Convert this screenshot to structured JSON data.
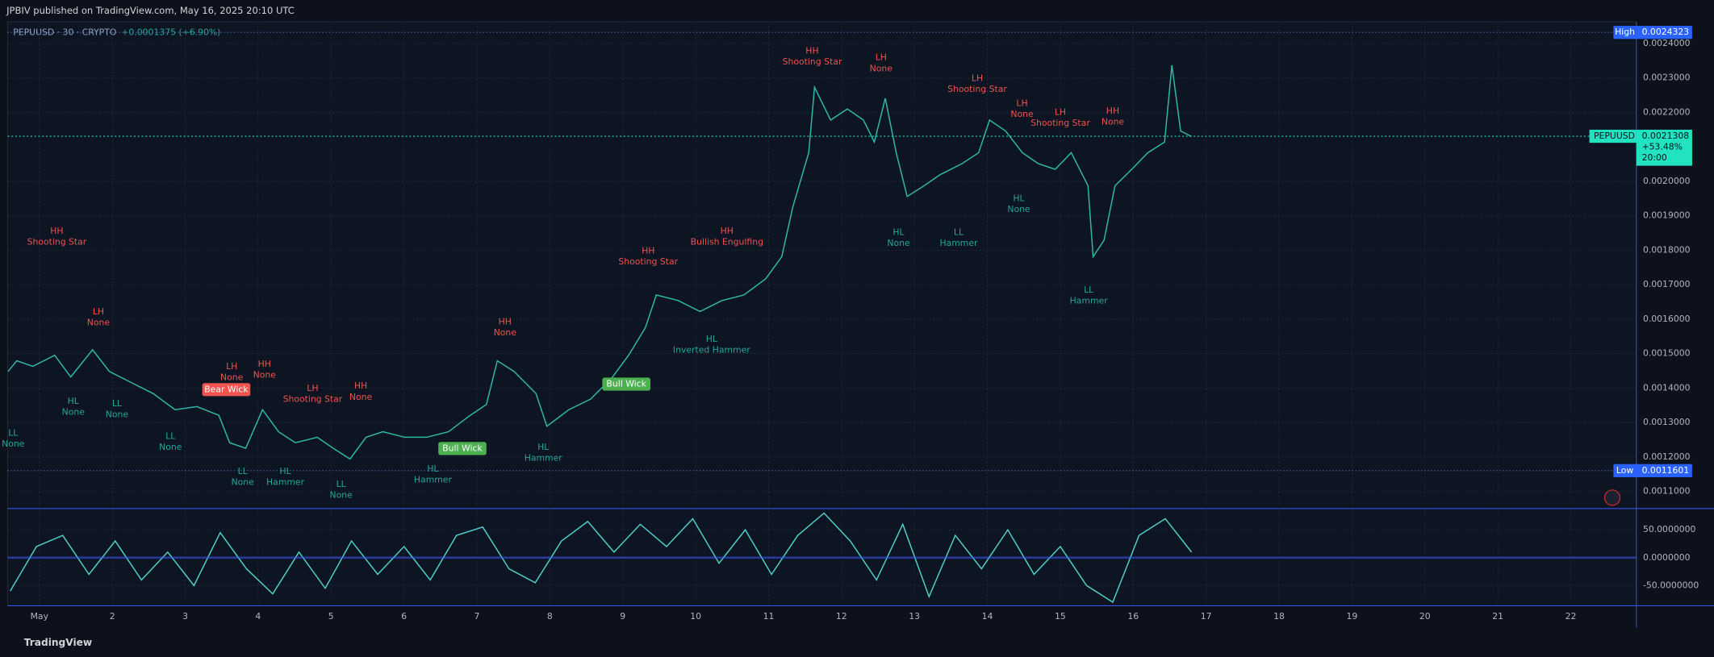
{
  "header": "JPBIV published on TradingView.com, May 16, 2025 20:10 UTC",
  "footer": "TradingView",
  "chart_data": [
    {
      "type": "line",
      "symbol_line": "PEPUUSD · 30 · CRYPTO",
      "change": "+0.0001375 (+6.90%)",
      "x": [
        0.57,
        0.69,
        0.91,
        1.21,
        1.43,
        1.73,
        1.96,
        2.26,
        2.56,
        2.86,
        3.16,
        3.46,
        3.61,
        3.83,
        4.06,
        4.28,
        4.51,
        4.81,
        5.03,
        5.26,
        5.48,
        5.71,
        6.01,
        6.31,
        6.61,
        6.91,
        7.13,
        7.28,
        7.51,
        7.81,
        7.96,
        8.26,
        8.56,
        8.86,
        9.08,
        9.31,
        9.46,
        9.76,
        10.06,
        10.36,
        10.66,
        10.96,
        11.18,
        11.33,
        11.55,
        11.63,
        11.85,
        12.08,
        12.3,
        12.45,
        12.6,
        12.75,
        12.9,
        13.13,
        13.35,
        13.65,
        13.88,
        14.03,
        14.25,
        14.48,
        14.7,
        14.93,
        15.15,
        15.38,
        15.45,
        15.6,
        15.75,
        15.98,
        16.2,
        16.43,
        16.53,
        16.65,
        16.8
      ],
      "series": [
        {
          "color": "#2fb8a8",
          "values": [
            0.001448,
            0.001479,
            0.001463,
            0.001495,
            0.001432,
            0.001511,
            0.001448,
            0.001416,
            0.001384,
            0.001337,
            0.001346,
            0.001321,
            0.001241,
            0.001225,
            0.001337,
            0.001273,
            0.001241,
            0.001257,
            0.001225,
            0.001194,
            0.001257,
            0.001273,
            0.001257,
            0.001257,
            0.001273,
            0.001321,
            0.001352,
            0.001479,
            0.001448,
            0.001384,
            0.001289,
            0.001337,
            0.001368,
            0.001432,
            0.001495,
            0.001575,
            0.00167,
            0.001654,
            0.001622,
            0.001654,
            0.00167,
            0.001717,
            0.001781,
            0.001924,
            0.002083,
            0.002273,
            0.002178,
            0.00221,
            0.002178,
            0.002114,
            0.002241,
            0.002083,
            0.001956,
            0.001987,
            0.002019,
            0.002051,
            0.002083,
            0.002178,
            0.002146,
            0.002083,
            0.002051,
            0.002035,
            0.002083,
            0.001987,
            0.001781,
            0.001829,
            0.001987,
            0.002035,
            0.002083,
            0.002114,
            0.002337,
            0.002146,
            0.00213
          ]
        }
      ],
      "xlim": [
        0.565,
        22.9
      ],
      "xticks": [
        {
          "value": 1,
          "label": "May"
        },
        2,
        3,
        4,
        5,
        6,
        7,
        8,
        9,
        10,
        11,
        12,
        13,
        14,
        15,
        16,
        17,
        18,
        19,
        20,
        21,
        22
      ],
      "ylim": [
        0.00105,
        0.002463
      ],
      "yticks": [
        {
          "value": 0.0024,
          "label": "0.0024000"
        },
        {
          "value": 0.0023,
          "label": "0.0023000"
        },
        {
          "value": 0.0022,
          "label": "0.0022000"
        },
        {
          "value": 0.002,
          "label": "0.0020000"
        },
        {
          "value": 0.0019,
          "label": "0.0019000"
        },
        {
          "value": 0.0018,
          "label": "0.0018000"
        },
        {
          "value": 0.0017,
          "label": "0.0017000"
        },
        {
          "value": 0.0016,
          "label": "0.0016000"
        },
        {
          "value": 0.0015,
          "label": "0.0015000"
        },
        {
          "value": 0.0014,
          "label": "0.0014000"
        },
        {
          "value": 0.0013,
          "label": "0.0013000"
        },
        {
          "value": 0.0012,
          "label": "0.0012000"
        },
        {
          "value": 0.0011,
          "label": "0.0011000"
        }
      ],
      "grid": true,
      "high": {
        "label": "High",
        "value": 0.0024323
      },
      "low": {
        "label": "Low",
        "value": 0.0011601
      },
      "last": {
        "label": "PEPUUSD",
        "value": 0.0021308,
        "change": "+53.48%",
        "time": "20:00"
      },
      "annotations": [
        {
          "lines": [
            "HH",
            "Shooting Star"
          ]
        },
        {
          "lines": [
            "LH",
            "None"
          ]
        },
        {
          "lines": [
            "LL",
            "None"
          ]
        },
        {
          "lines": [
            "HL",
            "None"
          ]
        },
        {
          "lines": [
            "LL",
            "None"
          ]
        },
        {
          "lines": [
            "LL",
            "None"
          ]
        },
        {
          "lines": [
            "LH",
            "None"
          ]
        },
        {
          "lines": [
            "HH",
            "None"
          ]
        },
        {
          "lines": [
            "LH",
            "Shooting Star"
          ]
        },
        {
          "lines": [
            "HH",
            "None"
          ]
        },
        {
          "lines": [
            "LL",
            "None"
          ]
        },
        {
          "lines": [
            "HL",
            "Hammer"
          ]
        },
        {
          "lines": [
            "LL",
            "None"
          ]
        },
        {
          "lines": [
            "HL",
            "Hammer"
          ]
        },
        {
          "lines": [
            "HH",
            "None"
          ]
        },
        {
          "lines": [
            "HL",
            "Hammer"
          ]
        },
        {
          "lines": [
            "HH",
            "Shooting Star"
          ]
        },
        {
          "lines": [
            "HH",
            "Bullish Engulfing"
          ]
        },
        {
          "lines": [
            "HL",
            "Inverted Hammer"
          ]
        },
        {
          "lines": [
            "HH",
            "Shooting Star"
          ]
        },
        {
          "lines": [
            "LH",
            "None"
          ]
        },
        {
          "lines": [
            "HL",
            "None"
          ]
        },
        {
          "lines": [
            "LL",
            "Hammer"
          ]
        },
        {
          "lines": [
            "LH",
            "Shooting Star"
          ]
        },
        {
          "lines": [
            "LH",
            "None"
          ]
        },
        {
          "lines": [
            "HL",
            "None"
          ]
        },
        {
          "lines": [
            "LH",
            "Shooting Star"
          ]
        },
        {
          "lines": [
            "HH",
            "None"
          ]
        },
        {
          "lines": [
            "LL",
            "Hammer"
          ]
        }
      ],
      "badges": [
        "Bear Wick",
        "Bull Wick",
        "Bull Wick"
      ]
    },
    {
      "type": "line",
      "x": [
        0.6,
        0.96,
        1.32,
        1.68,
        2.04,
        2.4,
        2.76,
        3.12,
        3.48,
        3.84,
        4.2,
        4.56,
        4.92,
        5.28,
        5.64,
        6,
        6.36,
        6.72,
        7.08,
        7.44,
        7.8,
        8.16,
        8.52,
        8.88,
        9.24,
        9.6,
        9.96,
        10.32,
        10.68,
        11.04,
        11.4,
        11.76,
        12.12,
        12.48,
        12.84,
        13.2,
        13.56,
        13.92,
        14.28,
        14.64,
        15,
        15.36,
        15.72,
        16.08,
        16.44,
        16.8
      ],
      "series": [
        {
          "color": "#4dd0c8",
          "values": [
            -60,
            20,
            40,
            -30,
            30,
            -40,
            10,
            -50,
            45,
            -20,
            -65,
            10,
            -55,
            30,
            -30,
            20,
            -40,
            40,
            55,
            -20,
            -45,
            30,
            65,
            10,
            60,
            20,
            70,
            -10,
            50,
            -30,
            40,
            80,
            30,
            -40,
            60,
            -70,
            40,
            -20,
            50,
            -30,
            20,
            -50,
            -80,
            40,
            70,
            10
          ]
        }
      ],
      "xlim": [
        0.565,
        22.9
      ],
      "ylim": [
        -86.3,
        88.2
      ],
      "yticks": [
        {
          "value": 50,
          "label": "50.0000000"
        },
        {
          "value": 0,
          "label": "0.0000000"
        },
        {
          "value": -50,
          "label": "-50.0000000"
        }
      ],
      "grid": true
    }
  ]
}
